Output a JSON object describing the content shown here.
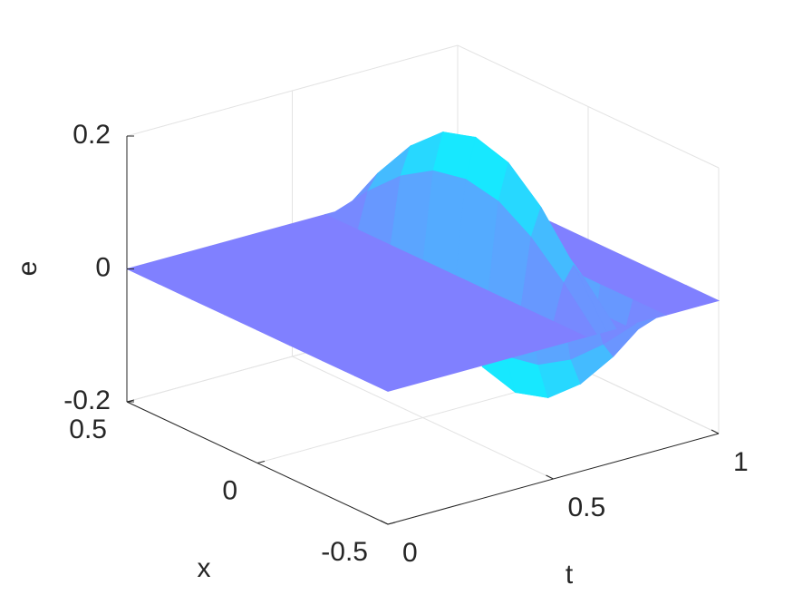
{
  "chart_data": {
    "type": "surface",
    "xlabel": "t",
    "ylabel": "x",
    "zlabel": "e",
    "t": [
      0,
      0.6,
      0.63,
      0.66,
      0.69,
      0.72,
      0.75,
      0.78,
      0.81,
      0.84,
      1
    ],
    "x": [
      -0.5,
      -0.375,
      -0.25,
      -0.125,
      0,
      0.125,
      0.25,
      0.375,
      0.5
    ],
    "z": [
      [
        0,
        0,
        0,
        0,
        0,
        0,
        0,
        0,
        0,
        0,
        0
      ],
      [
        0,
        0,
        0.054,
        0.077,
        0.054,
        0,
        -0.054,
        -0.077,
        -0.054,
        0,
        0
      ],
      [
        0,
        0,
        0.1,
        0.141,
        0.1,
        0,
        -0.1,
        -0.141,
        -0.1,
        0,
        0
      ],
      [
        0,
        0,
        0.131,
        0.185,
        0.131,
        0,
        -0.131,
        -0.185,
        -0.131,
        0,
        0
      ],
      [
        0,
        0,
        0.141,
        0.2,
        0.141,
        0,
        -0.141,
        -0.2,
        -0.141,
        0,
        0
      ],
      [
        0,
        0,
        0.131,
        0.185,
        0.131,
        0,
        -0.131,
        -0.185,
        -0.131,
        0,
        0
      ],
      [
        0,
        0,
        0.1,
        0.141,
        0.1,
        0,
        -0.1,
        -0.141,
        -0.1,
        0,
        0
      ],
      [
        0,
        0,
        0.054,
        0.077,
        0.054,
        0,
        -0.054,
        -0.077,
        -0.054,
        0,
        0
      ],
      [
        0,
        0,
        0,
        0,
        0,
        0,
        0,
        0,
        0,
        0,
        0
      ]
    ],
    "tlim": [
      0,
      1
    ],
    "tticks": [
      0,
      0.5,
      1
    ],
    "xlim": [
      -0.5,
      0.5
    ],
    "xticks": [
      -0.5,
      0,
      0.5
    ],
    "zlim": [
      -0.2,
      0.2
    ],
    "zticks": [
      -0.2,
      0,
      0.2
    ],
    "colormap": [
      "#8080ff",
      "#00ffff"
    ],
    "grid": true
  }
}
